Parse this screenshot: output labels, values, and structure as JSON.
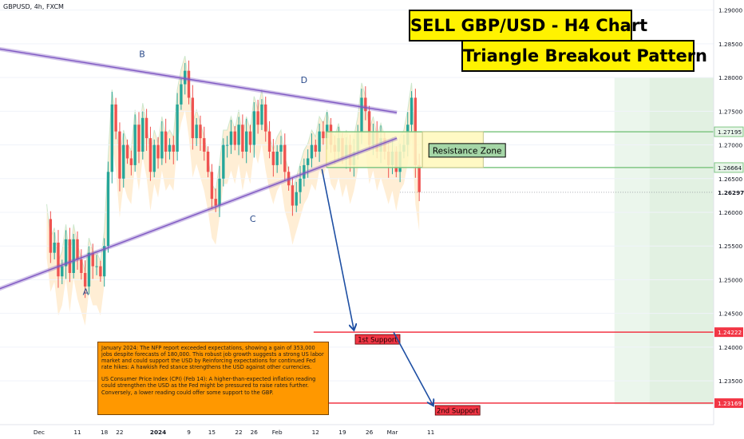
{
  "symbol": "GBPUSD, 4h, FXCM",
  "titles": {
    "main": "SELL GBP/USD - H4 Chart",
    "pattern": "Triangle Breakout Pattern"
  },
  "note": {
    "p1": "January 2024: The NFP report exceeded expectations, showing a gain of 353,000 jobs despite forecasts of 180,000. This robust job growth suggests a strong US labor market and could support the USD by Reinforcing expectations for continued Fed rate hikes: A hawkish Fed stance strengthens the USD against other currencies.",
    "p2": "US Consumer Price Index (CPI) (Feb 14): A higher-than-expected inflation reading could strengthen the USD as the Fed might be pressured to raise rates further. Conversely, a lower reading could offer some support to the GBP."
  },
  "colors": {
    "bull": "#26a69a",
    "bear": "#ef5350",
    "trendline": "#7e57c2",
    "arrow": "#1e4fa3",
    "support_line": "#f23645",
    "support_label_bg": "#f23645",
    "zone_fill": "#fff9c4",
    "zone_border": "#81c784",
    "resistance_label_bg": "#a5d6a7",
    "title_bg": "#fff200",
    "note_bg": "#ff9800",
    "cloud": "#ffe0b2",
    "cloud_alt": "#c8e6c9"
  },
  "chart_data": {
    "type": "candlestick",
    "title": "SELL GBP/USD - H4 Chart",
    "subtitle": "Triangle Breakout Pattern",
    "timeframe": "4h",
    "ylim": [
      1.2285,
      1.2915
    ],
    "y_ticks": [
      "1.29000",
      "1.28500",
      "1.28000",
      "1.27500",
      "1.27000",
      "1.26500",
      "1.26000",
      "1.25500",
      "1.25000",
      "1.24500",
      "1.24000",
      "1.23500"
    ],
    "x_ticks": [
      {
        "label": "Dec",
        "x": 0.0
      },
      {
        "label": "11",
        "x": 10
      },
      {
        "label": "18",
        "x": 17
      },
      {
        "label": "22",
        "x": 21
      },
      {
        "label": "2024",
        "x": 31
      },
      {
        "label": "9",
        "x": 39
      },
      {
        "label": "15",
        "x": 45
      },
      {
        "label": "22",
        "x": 52
      },
      {
        "label": "26",
        "x": 56
      },
      {
        "label": "Feb",
        "x": 62
      },
      {
        "label": "12",
        "x": 72
      },
      {
        "label": "19",
        "x": 79
      },
      {
        "label": "26",
        "x": 86
      },
      {
        "label": "Mar",
        "x": 92
      },
      {
        "label": "11",
        "x": 102
      }
    ],
    "xlim": [
      -3.5,
      108
    ],
    "price_labels": [
      {
        "text": "1.27195",
        "value": 1.27195,
        "kind": "zone"
      },
      {
        "text": "1.26664",
        "value": 1.26664,
        "kind": "zone"
      },
      {
        "text": "1.26297",
        "value": 1.26297,
        "kind": "current"
      },
      {
        "text": "1.24222",
        "value": 1.24222,
        "kind": "support"
      },
      {
        "text": "1.23169",
        "value": 1.23169,
        "kind": "support"
      }
    ],
    "price_path": [
      [
        1.259,
        2
      ],
      [
        1.254,
        3
      ],
      [
        1.2555,
        4
      ],
      [
        1.2505,
        5
      ],
      [
        1.252,
        6
      ],
      [
        1.256,
        7
      ],
      [
        1.251,
        8
      ],
      [
        1.256,
        9
      ],
      [
        1.253,
        10
      ],
      [
        1.251,
        11
      ],
      [
        1.249,
        12
      ],
      [
        1.254,
        13
      ],
      [
        1.252,
        14
      ],
      [
        1.252,
        15
      ],
      [
        1.2505,
        16
      ],
      [
        1.255,
        17
      ],
      [
        1.266,
        18
      ],
      [
        1.276,
        19
      ],
      [
        1.272,
        20
      ],
      [
        1.265,
        21
      ],
      [
        1.27,
        22
      ],
      [
        1.268,
        23
      ],
      [
        1.267,
        24
      ],
      [
        1.273,
        25
      ],
      [
        1.269,
        26
      ],
      [
        1.274,
        27
      ],
      [
        1.271,
        28
      ],
      [
        1.266,
        29
      ],
      [
        1.27,
        30
      ],
      [
        1.268,
        31
      ],
      [
        1.272,
        32
      ],
      [
        1.269,
        33
      ],
      [
        1.27,
        34
      ],
      [
        1.269,
        35
      ],
      [
        1.276,
        36
      ],
      [
        1.279,
        37
      ],
      [
        1.281,
        38
      ],
      [
        1.277,
        39
      ],
      [
        1.271,
        40
      ],
      [
        1.273,
        41
      ],
      [
        1.271,
        42
      ],
      [
        1.269,
        43
      ],
      [
        1.266,
        44
      ],
      [
        1.262,
        45
      ],
      [
        1.261,
        46
      ],
      [
        1.265,
        47
      ],
      [
        1.27,
        48
      ],
      [
        1.27,
        49
      ],
      [
        1.272,
        50
      ],
      [
        1.27,
        51
      ],
      [
        1.273,
        52
      ],
      [
        1.269,
        53
      ],
      [
        1.272,
        54
      ],
      [
        1.27,
        55
      ],
      [
        1.275,
        56
      ],
      [
        1.273,
        57
      ],
      [
        1.276,
        58
      ],
      [
        1.272,
        59
      ],
      [
        1.269,
        60
      ],
      [
        1.267,
        61
      ],
      [
        1.269,
        62
      ],
      [
        1.27,
        63
      ],
      [
        1.266,
        64
      ],
      [
        1.264,
        65
      ],
      [
        1.261,
        66
      ],
      [
        1.263,
        67
      ],
      [
        1.265,
        68
      ],
      [
        1.267,
        69
      ],
      [
        1.268,
        70
      ],
      [
        1.27,
        71
      ],
      [
        1.269,
        72
      ],
      [
        1.272,
        73
      ],
      [
        1.271,
        74
      ],
      [
        1.273,
        75
      ],
      [
        1.27,
        76
      ],
      [
        1.269,
        77
      ],
      [
        1.271,
        78
      ],
      [
        1.268,
        79
      ],
      [
        1.27,
        80
      ],
      [
        1.267,
        81
      ],
      [
        1.269,
        82
      ],
      [
        1.272,
        83
      ],
      [
        1.277,
        84
      ],
      [
        1.275,
        85
      ],
      [
        1.27,
        86
      ],
      [
        1.272,
        87
      ],
      [
        1.269,
        88
      ],
      [
        1.271,
        89
      ],
      [
        1.269,
        90
      ],
      [
        1.267,
        91
      ],
      [
        1.269,
        92
      ],
      [
        1.266,
        93
      ],
      [
        1.269,
        94
      ],
      [
        1.27,
        95
      ],
      [
        1.273,
        96
      ],
      [
        1.277,
        97
      ],
      [
        1.267,
        98
      ],
      [
        1.263,
        99
      ]
    ],
    "trendlines": [
      {
        "name": "upper",
        "from": [
          -4.0,
          1.2843
        ],
        "to": [
          58.5,
          1.2748
        ]
      },
      {
        "name": "lower",
        "from": [
          -4.0,
          1.2485
        ],
        "to": [
          58.5,
          1.271
        ]
      }
    ],
    "swing_points": [
      {
        "label": "A",
        "x": 9.9,
        "y": 1.2493,
        "pos": "below"
      },
      {
        "label": "B",
        "x": 18.7,
        "y": 1.2823,
        "pos": "above"
      },
      {
        "label": "C",
        "x": 36.0,
        "y": 1.2601,
        "pos": "below"
      },
      {
        "label": "D",
        "x": 44.0,
        "y": 1.2785,
        "pos": "above"
      }
    ],
    "resistance_zone": {
      "label": "Resistance Zone",
      "low": 1.26664,
      "high": 1.27195
    },
    "supports": [
      {
        "label": "1st Support",
        "value": 1.24222
      },
      {
        "label": "2nd Support",
        "value": 1.23169
      }
    ],
    "projection": [
      {
        "from": [
          46.8,
          1.2664
        ],
        "to": [
          51.8,
          1.2425
        ]
      },
      {
        "from": [
          58.0,
          1.2422
        ],
        "to": [
          64.2,
          1.2313
        ]
      }
    ]
  }
}
